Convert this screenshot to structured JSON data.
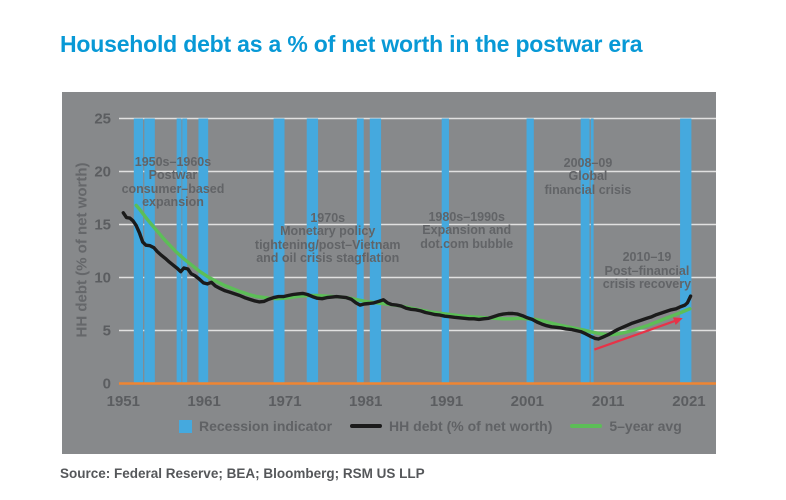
{
  "title": "Household debt as a % of net worth in the postwar era",
  "source": "Source: Federal Reserve; BEA; Bloomberg; RSM US LLP",
  "colors": {
    "title_blue": "#0899d6",
    "panel_gray": "#87898b",
    "recession_blue": "#45a9de",
    "gridline": "#e9e9e9",
    "zero_axis_orange": "#ef8533",
    "hh_debt_black": "#1b1b1b",
    "five_year_avg_green": "#5cbe57",
    "trend_arrow_red": "#e73348",
    "axis_text_gray": "#5b5d60",
    "annotation_gray": "#626467"
  },
  "legend": {
    "items": [
      {
        "swatch": "square-blue",
        "label": "Recession indicator"
      },
      {
        "swatch": "line-black",
        "label": "HH debt (% of net worth)"
      },
      {
        "swatch": "line-green",
        "label": "5–year avg"
      }
    ]
  },
  "chart_data": {
    "type": "line",
    "title": "Household debt as a % of net worth in the postwar era",
    "xlabel": "",
    "ylabel": "HH debt (% of net worth)",
    "ylim": [
      0,
      25
    ],
    "yticks": [
      0,
      5,
      10,
      15,
      20,
      25
    ],
    "xticks": [
      1951,
      1961,
      1971,
      1981,
      1991,
      2001,
      2011,
      2021
    ],
    "xlim": [
      1950.5,
      2021.4
    ],
    "grid": "horizontal-only",
    "legend_position": "bottom-center",
    "recession_periods": [
      [
        1952.3,
        1953.45
      ],
      [
        1953.6,
        1954.9
      ],
      [
        1957.6,
        1958.2
      ],
      [
        1958.3,
        1958.9
      ],
      [
        1960.3,
        1961.5
      ],
      [
        1969.6,
        1970.95
      ],
      [
        1973.7,
        1975.1
      ],
      [
        1979.9,
        1980.75
      ],
      [
        1981.5,
        1982.9
      ],
      [
        1990.4,
        1991.3
      ],
      [
        2000.9,
        2001.8
      ],
      [
        2007.6,
        2008.7
      ],
      [
        2008.85,
        2009.2
      ],
      [
        2019.9,
        2021.3
      ]
    ],
    "series": [
      {
        "name": "HH debt (% of net worth)",
        "color": "#1b1b1b",
        "width": 3.4,
        "points": [
          [
            1951,
            16.1
          ],
          [
            1951.4,
            15.65
          ],
          [
            1951.8,
            15.6
          ],
          [
            1952.2,
            15.35
          ],
          [
            1952.6,
            14.9
          ],
          [
            1953,
            14.2
          ],
          [
            1953.4,
            13.35
          ],
          [
            1953.8,
            13.05
          ],
          [
            1954.3,
            13.0
          ],
          [
            1954.8,
            12.8
          ],
          [
            1955.2,
            12.45
          ],
          [
            1955.7,
            12.1
          ],
          [
            1956.2,
            11.8
          ],
          [
            1956.7,
            11.45
          ],
          [
            1957.2,
            11.15
          ],
          [
            1957.7,
            10.85
          ],
          [
            1958.1,
            10.55
          ],
          [
            1958.5,
            10.9
          ],
          [
            1959,
            10.8
          ],
          [
            1959.4,
            10.35
          ],
          [
            1959.9,
            10.15
          ],
          [
            1960.4,
            9.85
          ],
          [
            1960.9,
            9.5
          ],
          [
            1961.4,
            9.4
          ],
          [
            1961.9,
            9.55
          ],
          [
            1962.4,
            9.2
          ],
          [
            1963,
            8.95
          ],
          [
            1963.6,
            8.75
          ],
          [
            1964.2,
            8.6
          ],
          [
            1964.8,
            8.45
          ],
          [
            1965.4,
            8.3
          ],
          [
            1966,
            8.1
          ],
          [
            1966.6,
            7.95
          ],
          [
            1967.2,
            7.8
          ],
          [
            1967.8,
            7.7
          ],
          [
            1968.4,
            7.75
          ],
          [
            1969,
            7.95
          ],
          [
            1969.6,
            8.1
          ],
          [
            1970.2,
            8.2
          ],
          [
            1970.8,
            8.2
          ],
          [
            1971.4,
            8.3
          ],
          [
            1972,
            8.4
          ],
          [
            1972.6,
            8.45
          ],
          [
            1973.2,
            8.5
          ],
          [
            1973.8,
            8.4
          ],
          [
            1974.4,
            8.2
          ],
          [
            1975,
            8.05
          ],
          [
            1975.6,
            8.0
          ],
          [
            1976.2,
            8.1
          ],
          [
            1976.8,
            8.15
          ],
          [
            1977.4,
            8.2
          ],
          [
            1978,
            8.15
          ],
          [
            1978.6,
            8.1
          ],
          [
            1979.2,
            7.95
          ],
          [
            1979.8,
            7.6
          ],
          [
            1980.3,
            7.4
          ],
          [
            1980.8,
            7.5
          ],
          [
            1981.4,
            7.55
          ],
          [
            1982,
            7.6
          ],
          [
            1982.6,
            7.75
          ],
          [
            1983.2,
            7.9
          ],
          [
            1983.7,
            7.6
          ],
          [
            1984.2,
            7.45
          ],
          [
            1984.8,
            7.4
          ],
          [
            1985.4,
            7.3
          ],
          [
            1986,
            7.1
          ],
          [
            1986.6,
            7.0
          ],
          [
            1987.2,
            6.95
          ],
          [
            1987.8,
            6.85
          ],
          [
            1988.4,
            6.7
          ],
          [
            1989,
            6.6
          ],
          [
            1989.6,
            6.5
          ],
          [
            1990.2,
            6.45
          ],
          [
            1990.8,
            6.35
          ],
          [
            1991.4,
            6.3
          ],
          [
            1992,
            6.25
          ],
          [
            1992.6,
            6.2
          ],
          [
            1993.2,
            6.15
          ],
          [
            1993.8,
            6.1
          ],
          [
            1994.4,
            6.1
          ],
          [
            1995,
            6.05
          ],
          [
            1995.6,
            6.1
          ],
          [
            1996.2,
            6.15
          ],
          [
            1996.8,
            6.3
          ],
          [
            1997.4,
            6.45
          ],
          [
            1998,
            6.55
          ],
          [
            1998.6,
            6.6
          ],
          [
            1999.2,
            6.6
          ],
          [
            1999.8,
            6.55
          ],
          [
            2000.4,
            6.4
          ],
          [
            2001,
            6.2
          ],
          [
            2001.6,
            6.05
          ],
          [
            2002.2,
            5.8
          ],
          [
            2002.8,
            5.6
          ],
          [
            2003.4,
            5.45
          ],
          [
            2004,
            5.35
          ],
          [
            2004.6,
            5.3
          ],
          [
            2005.2,
            5.25
          ],
          [
            2005.8,
            5.15
          ],
          [
            2006.4,
            5.1
          ],
          [
            2007,
            5.0
          ],
          [
            2007.6,
            4.9
          ],
          [
            2008.2,
            4.7
          ],
          [
            2008.8,
            4.45
          ],
          [
            2009.4,
            4.25
          ],
          [
            2009.8,
            4.2
          ],
          [
            2010.4,
            4.4
          ],
          [
            2011,
            4.6
          ],
          [
            2011.6,
            4.85
          ],
          [
            2012.2,
            5.1
          ],
          [
            2012.8,
            5.3
          ],
          [
            2013.4,
            5.5
          ],
          [
            2014,
            5.7
          ],
          [
            2014.6,
            5.85
          ],
          [
            2015.2,
            6.0
          ],
          [
            2015.8,
            6.15
          ],
          [
            2016.4,
            6.3
          ],
          [
            2017,
            6.5
          ],
          [
            2017.6,
            6.65
          ],
          [
            2018.2,
            6.8
          ],
          [
            2018.8,
            6.95
          ],
          [
            2019.4,
            7.05
          ],
          [
            2020,
            7.25
          ],
          [
            2020.5,
            7.4
          ],
          [
            2020.8,
            7.6
          ],
          [
            2021.2,
            8.25
          ]
        ]
      },
      {
        "name": "5–year avg",
        "color": "#5cbe57",
        "width": 3.4,
        "points": [
          [
            1952.6,
            16.8
          ],
          [
            1953,
            16.45
          ],
          [
            1953.5,
            15.95
          ],
          [
            1954,
            15.45
          ],
          [
            1954.5,
            15.0
          ],
          [
            1955,
            14.55
          ],
          [
            1955.5,
            14.1
          ],
          [
            1956,
            13.65
          ],
          [
            1956.5,
            13.25
          ],
          [
            1957,
            12.85
          ],
          [
            1957.5,
            12.45
          ],
          [
            1958,
            12.1
          ],
          [
            1958.5,
            11.75
          ],
          [
            1959,
            11.45
          ],
          [
            1959.5,
            11.15
          ],
          [
            1960,
            10.85
          ],
          [
            1960.5,
            10.55
          ],
          [
            1961,
            10.3
          ],
          [
            1961.5,
            10.05
          ],
          [
            1962,
            9.85
          ],
          [
            1962.5,
            9.65
          ],
          [
            1963,
            9.45
          ],
          [
            1963.5,
            9.25
          ],
          [
            1964,
            9.1
          ],
          [
            1964.5,
            8.95
          ],
          [
            1965,
            8.8
          ],
          [
            1965.5,
            8.65
          ],
          [
            1966,
            8.55
          ],
          [
            1966.5,
            8.4
          ],
          [
            1967,
            8.3
          ],
          [
            1967.5,
            8.2
          ],
          [
            1968,
            8.15
          ],
          [
            1968.5,
            8.1
          ],
          [
            1969,
            8.05
          ],
          [
            1970,
            8.0
          ],
          [
            1971,
            8.05
          ],
          [
            1972,
            8.15
          ],
          [
            1973,
            8.25
          ],
          [
            1974,
            8.3
          ],
          [
            1975,
            8.3
          ],
          [
            1976,
            8.25
          ],
          [
            1977,
            8.2
          ],
          [
            1978,
            8.15
          ],
          [
            1979,
            8.05
          ],
          [
            1980,
            7.9
          ],
          [
            1981,
            7.75
          ],
          [
            1982,
            7.65
          ],
          [
            1983,
            7.55
          ],
          [
            1984,
            7.45
          ],
          [
            1985,
            7.35
          ],
          [
            1986,
            7.2
          ],
          [
            1987,
            7.05
          ],
          [
            1988,
            6.9
          ],
          [
            1989,
            6.75
          ],
          [
            1990,
            6.65
          ],
          [
            1991,
            6.55
          ],
          [
            1992,
            6.45
          ],
          [
            1993,
            6.35
          ],
          [
            1994,
            6.3
          ],
          [
            1995,
            6.25
          ],
          [
            1996,
            6.2
          ],
          [
            1997,
            6.15
          ],
          [
            1998,
            6.1
          ],
          [
            1999,
            6.1
          ],
          [
            2000,
            6.15
          ],
          [
            2001,
            6.1
          ],
          [
            2002,
            6.05
          ],
          [
            2003,
            5.9
          ],
          [
            2004,
            5.7
          ],
          [
            2005,
            5.5
          ],
          [
            2006,
            5.35
          ],
          [
            2007,
            5.2
          ],
          [
            2008,
            5.05
          ],
          [
            2009,
            4.85
          ],
          [
            2010,
            4.7
          ],
          [
            2011,
            4.6
          ],
          [
            2011.5,
            4.6
          ],
          [
            2012,
            4.65
          ],
          [
            2013,
            4.8
          ],
          [
            2014,
            5.0
          ],
          [
            2015,
            5.25
          ],
          [
            2016,
            5.5
          ],
          [
            2017,
            5.8
          ],
          [
            2018,
            6.1
          ],
          [
            2019,
            6.4
          ],
          [
            2020,
            6.7
          ],
          [
            2021.1,
            7.05
          ]
        ]
      }
    ],
    "trend_arrow": {
      "from": [
        2009.3,
        3.2
      ],
      "to": [
        2020.0,
        6.1
      ],
      "color": "#e73348"
    },
    "annotations": [
      {
        "anchor_year": 1957.15,
        "anchor_value": 21.5,
        "lines": [
          "1950s–1960s",
          "Postwar",
          "consumer–based",
          "expansion"
        ]
      },
      {
        "anchor_year": 1976.3,
        "anchor_value": 16.2,
        "lines": [
          "1970s",
          "Monetary policy",
          "tightening/post–Vietnam",
          "and oil crisis stagflation"
        ]
      },
      {
        "anchor_year": 1993.5,
        "anchor_value": 16.3,
        "lines": [
          "1980s–1990s",
          "Expansion and",
          "dot.com bubble"
        ]
      },
      {
        "anchor_year": 2008.5,
        "anchor_value": 21.4,
        "lines": [
          "2008–09",
          "Global",
          "financial crisis"
        ]
      },
      {
        "anchor_year": 2015.8,
        "anchor_value": 12.5,
        "lines": [
          "2010–19",
          "Post–financial",
          "crisis recovery"
        ]
      }
    ]
  }
}
